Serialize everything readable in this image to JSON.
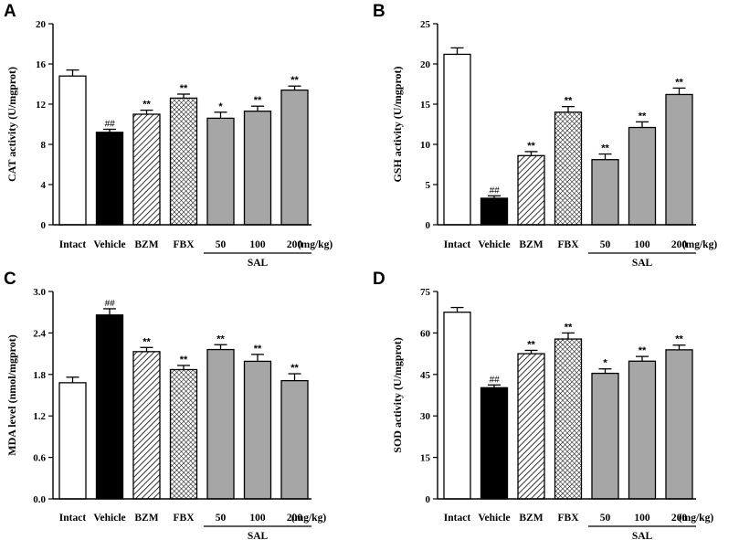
{
  "chart_data": [
    {
      "panel": "A",
      "type": "bar",
      "ylabel": "CAT activity (U/mgprot)",
      "ylim": [
        0,
        20
      ],
      "yticks": [
        0,
        4,
        8,
        12,
        16,
        20
      ],
      "categories": [
        "Intact",
        "Vehicle",
        "BZM",
        "FBX",
        "50",
        "100",
        "200"
      ],
      "values": [
        14.8,
        9.2,
        11.0,
        12.6,
        10.6,
        11.3,
        13.4
      ],
      "errors": [
        0.6,
        0.3,
        0.4,
        0.4,
        0.6,
        0.5,
        0.4
      ],
      "significance": [
        "",
        "##",
        "**",
        "**",
        "*",
        "**",
        "**"
      ],
      "unit_label": "(mg/kg)",
      "group_label": "SAL"
    },
    {
      "panel": "B",
      "type": "bar",
      "ylabel": "GSH activity (U/mgprot)",
      "ylim": [
        0,
        25
      ],
      "yticks": [
        0,
        5,
        10,
        15,
        20,
        25
      ],
      "categories": [
        "Intact",
        "Vehicle",
        "BZM",
        "FBX",
        "50",
        "100",
        "200"
      ],
      "values": [
        21.2,
        3.3,
        8.6,
        14.0,
        8.1,
        12.1,
        16.2
      ],
      "errors": [
        0.8,
        0.3,
        0.5,
        0.7,
        0.7,
        0.7,
        0.8
      ],
      "significance": [
        "",
        "##",
        "**",
        "**",
        "**",
        "**",
        "**"
      ],
      "unit_label": "(mg/kg)",
      "group_label": "SAL"
    },
    {
      "panel": "C",
      "type": "bar",
      "ylabel": "MDA level (nmol/mgprot)",
      "ylim": [
        0,
        3.0
      ],
      "yticks": [
        "0.0",
        "0.6",
        "1.2",
        "1.8",
        "2.4",
        "3.0"
      ],
      "categories": [
        "Intact",
        "Vehicle",
        "BZM",
        "FBX",
        "50",
        "100",
        "200"
      ],
      "values": [
        1.68,
        2.66,
        2.13,
        1.87,
        2.16,
        1.99,
        1.71
      ],
      "errors": [
        0.08,
        0.09,
        0.06,
        0.06,
        0.07,
        0.1,
        0.1
      ],
      "significance": [
        "",
        "##",
        "**",
        "**",
        "**",
        "**",
        "**"
      ],
      "unit_label": "(mg/kg)",
      "group_label": "SAL"
    },
    {
      "panel": "D",
      "type": "bar",
      "ylabel": "SOD activity (U/mgprot)",
      "ylim": [
        0,
        75
      ],
      "yticks": [
        0,
        15,
        30,
        45,
        60,
        75
      ],
      "categories": [
        "Intact",
        "Vehicle",
        "BZM",
        "FBX",
        "50",
        "100",
        "200"
      ],
      "values": [
        67.5,
        40.2,
        52.5,
        57.8,
        45.4,
        49.8,
        53.9
      ],
      "errors": [
        1.7,
        1.0,
        1.2,
        2.2,
        1.6,
        1.7,
        1.7
      ],
      "significance": [
        "",
        "##",
        "**",
        "**",
        "*",
        "**",
        "**"
      ],
      "unit_label": "(mg/kg)",
      "group_label": "SAL"
    }
  ],
  "bar_styles": [
    "white",
    "black",
    "hatch",
    "crosshatch",
    "gray",
    "gray",
    "gray"
  ],
  "colors": {
    "axis": "#000000",
    "gray_fill": "#a6a6a6",
    "black_fill": "#000000",
    "white_fill": "#ffffff"
  }
}
